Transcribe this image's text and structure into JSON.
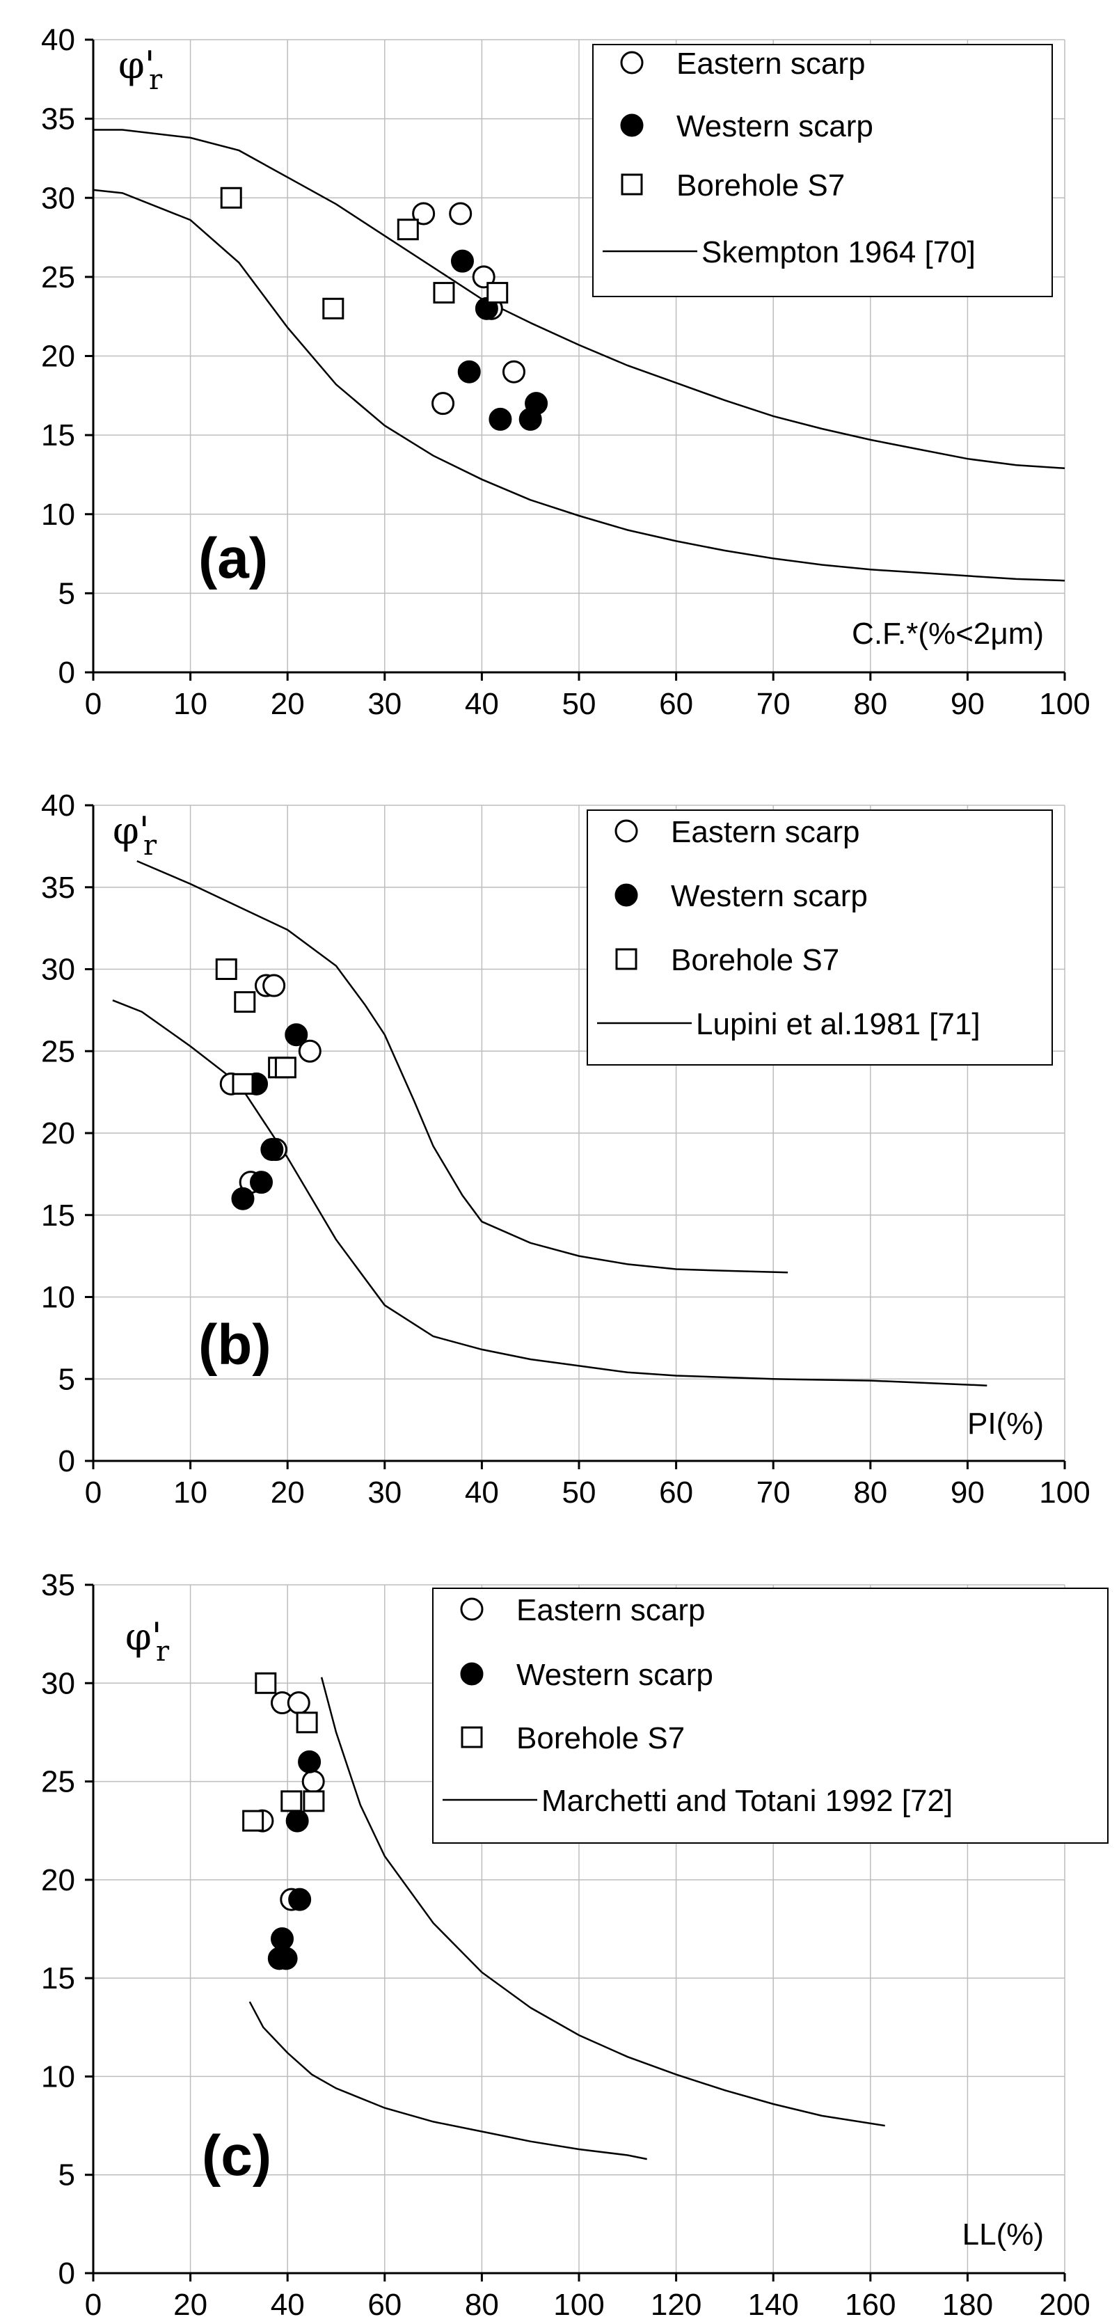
{
  "chart_data": [
    {
      "type": "scatter",
      "panel_label": "(a)",
      "ylabel_symbol": "φ'",
      "ylabel_sub": "r",
      "xlabel": "C.F.*(%<2μm)",
      "xlim": [
        0,
        100
      ],
      "ylim": [
        0,
        40
      ],
      "xticks": [
        "0",
        "10",
        "20",
        "30",
        "40",
        "50",
        "60",
        "70",
        "80",
        "90",
        "100"
      ],
      "yticks": [
        "0",
        "5",
        "10",
        "15",
        "20",
        "25",
        "30",
        "35",
        "40"
      ],
      "grid": true,
      "legend_position": "top-right",
      "series": [
        {
          "name": "Eastern scarp",
          "marker": "circle-open",
          "points": [
            [
              34,
              29
            ],
            [
              37.8,
              29
            ],
            [
              40.2,
              25
            ],
            [
              41,
              23
            ],
            [
              43.3,
              19
            ],
            [
              36,
              17
            ]
          ]
        },
        {
          "name": "Western scarp",
          "marker": "circle-filled",
          "points": [
            [
              38,
              26
            ],
            [
              40.5,
              23
            ],
            [
              38.7,
              19
            ],
            [
              41.9,
              16
            ],
            [
              45,
              16
            ],
            [
              45.6,
              17
            ]
          ]
        },
        {
          "name": "Borehole S7",
          "marker": "square-open",
          "points": [
            [
              14.2,
              30
            ],
            [
              24.7,
              23
            ],
            [
              32.4,
              28
            ],
            [
              36.1,
              24
            ],
            [
              41.6,
              24
            ]
          ]
        },
        {
          "name": "Skempton 1964 [70]",
          "marker": "line",
          "lines": [
            [
              [
                0,
                34.3
              ],
              [
                3,
                34.3
              ],
              [
                10,
                33.8
              ],
              [
                15,
                33
              ],
              [
                20,
                31.3
              ],
              [
                25,
                29.6
              ],
              [
                30,
                27.6
              ],
              [
                35,
                25.6
              ],
              [
                40,
                23.6
              ],
              [
                45,
                22.1
              ],
              [
                50,
                20.7
              ],
              [
                55,
                19.4
              ],
              [
                60,
                18.3
              ],
              [
                65,
                17.2
              ],
              [
                70,
                16.2
              ],
              [
                75,
                15.4
              ],
              [
                80,
                14.7
              ],
              [
                85,
                14.1
              ],
              [
                90,
                13.5
              ],
              [
                95,
                13.1
              ],
              [
                100,
                12.9
              ]
            ],
            [
              [
                0,
                30.5
              ],
              [
                3,
                30.3
              ],
              [
                10,
                28.6
              ],
              [
                15,
                25.9
              ],
              [
                20,
                21.8
              ],
              [
                25,
                18.2
              ],
              [
                30,
                15.6
              ],
              [
                35,
                13.7
              ],
              [
                40,
                12.2
              ],
              [
                45,
                10.9
              ],
              [
                50,
                9.9
              ],
              [
                55,
                9
              ],
              [
                60,
                8.3
              ],
              [
                65,
                7.7
              ],
              [
                70,
                7.2
              ],
              [
                75,
                6.8
              ],
              [
                80,
                6.5
              ],
              [
                85,
                6.3
              ],
              [
                90,
                6.1
              ],
              [
                95,
                5.9
              ],
              [
                100,
                5.8
              ]
            ]
          ]
        }
      ]
    },
    {
      "type": "scatter",
      "panel_label": "(b)",
      "ylabel_symbol": "φ'",
      "ylabel_sub": "r",
      "xlabel": "PI(%)",
      "xlim": [
        0,
        100
      ],
      "ylim": [
        0,
        40
      ],
      "xticks": [
        "0",
        "10",
        "20",
        "30",
        "40",
        "50",
        "60",
        "70",
        "80",
        "90",
        "100"
      ],
      "yticks": [
        "0",
        "5",
        "10",
        "15",
        "20",
        "25",
        "30",
        "35",
        "40"
      ],
      "grid": true,
      "legend_position": "top-right",
      "series": [
        {
          "name": "Eastern scarp",
          "marker": "circle-open",
          "points": [
            [
              17.8,
              29
            ],
            [
              18.6,
              29
            ],
            [
              22.3,
              25
            ],
            [
              14.2,
              23
            ],
            [
              16.2,
              17
            ],
            [
              18.8,
              19
            ]
          ]
        },
        {
          "name": "Western scarp",
          "marker": "circle-filled",
          "points": [
            [
              20.9,
              26
            ],
            [
              16.8,
              23
            ],
            [
              18.4,
              19
            ],
            [
              17.3,
              17
            ],
            [
              15.4,
              16
            ]
          ]
        },
        {
          "name": "Borehole S7",
          "marker": "square-open",
          "points": [
            [
              13.7,
              30
            ],
            [
              15.6,
              28
            ],
            [
              15.4,
              23
            ],
            [
              19.1,
              24
            ],
            [
              19.8,
              24
            ]
          ]
        },
        {
          "name": "Lupini et al.1981 [71]",
          "marker": "line",
          "lines": [
            [
              [
                4.5,
                36.6
              ],
              [
                10,
                35.2
              ],
              [
                15,
                33.8
              ],
              [
                20,
                32.4
              ],
              [
                25,
                30.2
              ],
              [
                28,
                27.8
              ],
              [
                30,
                26
              ],
              [
                33,
                22
              ],
              [
                35,
                19.2
              ],
              [
                38,
                16.2
              ],
              [
                40,
                14.6
              ],
              [
                45,
                13.3
              ],
              [
                50,
                12.5
              ],
              [
                55,
                12
              ],
              [
                60,
                11.7
              ],
              [
                65,
                11.6
              ],
              [
                71.5,
                11.5
              ]
            ],
            [
              [
                2,
                28.1
              ],
              [
                5,
                27.4
              ],
              [
                10,
                25.3
              ],
              [
                15,
                23
              ],
              [
                20,
                18.5
              ],
              [
                25,
                13.5
              ],
              [
                30,
                9.5
              ],
              [
                35,
                7.6
              ],
              [
                40,
                6.8
              ],
              [
                45,
                6.2
              ],
              [
                50,
                5.8
              ],
              [
                55,
                5.4
              ],
              [
                60,
                5.2
              ],
              [
                70,
                5
              ],
              [
                80,
                4.9
              ],
              [
                92,
                4.6
              ]
            ]
          ]
        }
      ]
    },
    {
      "type": "scatter",
      "panel_label": "(c)",
      "ylabel_symbol": "φ'",
      "ylabel_sub": "r",
      "xlabel": "LL(%)",
      "xlim": [
        0,
        200
      ],
      "ylim": [
        0,
        35
      ],
      "xticks": [
        "0",
        "20",
        "40",
        "60",
        "80",
        "100",
        "120",
        "140",
        "160",
        "180",
        "200"
      ],
      "yticks": [
        "0",
        "5",
        "10",
        "15",
        "20",
        "25",
        "30",
        "35"
      ],
      "grid": true,
      "legend_position": "top-right",
      "series": [
        {
          "name": "Eastern scarp",
          "marker": "circle-open",
          "points": [
            [
              38.9,
              29
            ],
            [
              42.3,
              29
            ],
            [
              45.3,
              25
            ],
            [
              34.8,
              23
            ],
            [
              40.8,
              19
            ]
          ]
        },
        {
          "name": "Western scarp",
          "marker": "circle-filled",
          "points": [
            [
              44.5,
              26
            ],
            [
              42,
              23
            ],
            [
              42.5,
              19
            ],
            [
              38.9,
              17
            ],
            [
              38.3,
              16
            ],
            [
              39.7,
              16
            ]
          ]
        },
        {
          "name": "Borehole S7",
          "marker": "square-open",
          "points": [
            [
              35.5,
              30
            ],
            [
              44,
              28
            ],
            [
              32.9,
              23
            ],
            [
              40.8,
              24
            ],
            [
              45.4,
              24
            ]
          ]
        },
        {
          "name": "Marchetti and Totani 1992 [72]",
          "marker": "line",
          "lines": [
            [
              [
                47,
                30.3
              ],
              [
                50,
                27.5
              ],
              [
                55,
                23.8
              ],
              [
                60,
                21.2
              ],
              [
                70,
                17.8
              ],
              [
                80,
                15.3
              ],
              [
                90,
                13.5
              ],
              [
                100,
                12.1
              ],
              [
                110,
                11
              ],
              [
                120,
                10.1
              ],
              [
                130,
                9.3
              ],
              [
                140,
                8.6
              ],
              [
                150,
                8
              ],
              [
                163,
                7.5
              ]
            ],
            [
              [
                32.2,
                13.8
              ],
              [
                35,
                12.5
              ],
              [
                40,
                11.2
              ],
              [
                45,
                10.1
              ],
              [
                50,
                9.4
              ],
              [
                60,
                8.4
              ],
              [
                70,
                7.7
              ],
              [
                80,
                7.2
              ],
              [
                90,
                6.7
              ],
              [
                100,
                6.3
              ],
              [
                110,
                6
              ],
              [
                114,
                5.8
              ]
            ]
          ]
        }
      ]
    }
  ]
}
